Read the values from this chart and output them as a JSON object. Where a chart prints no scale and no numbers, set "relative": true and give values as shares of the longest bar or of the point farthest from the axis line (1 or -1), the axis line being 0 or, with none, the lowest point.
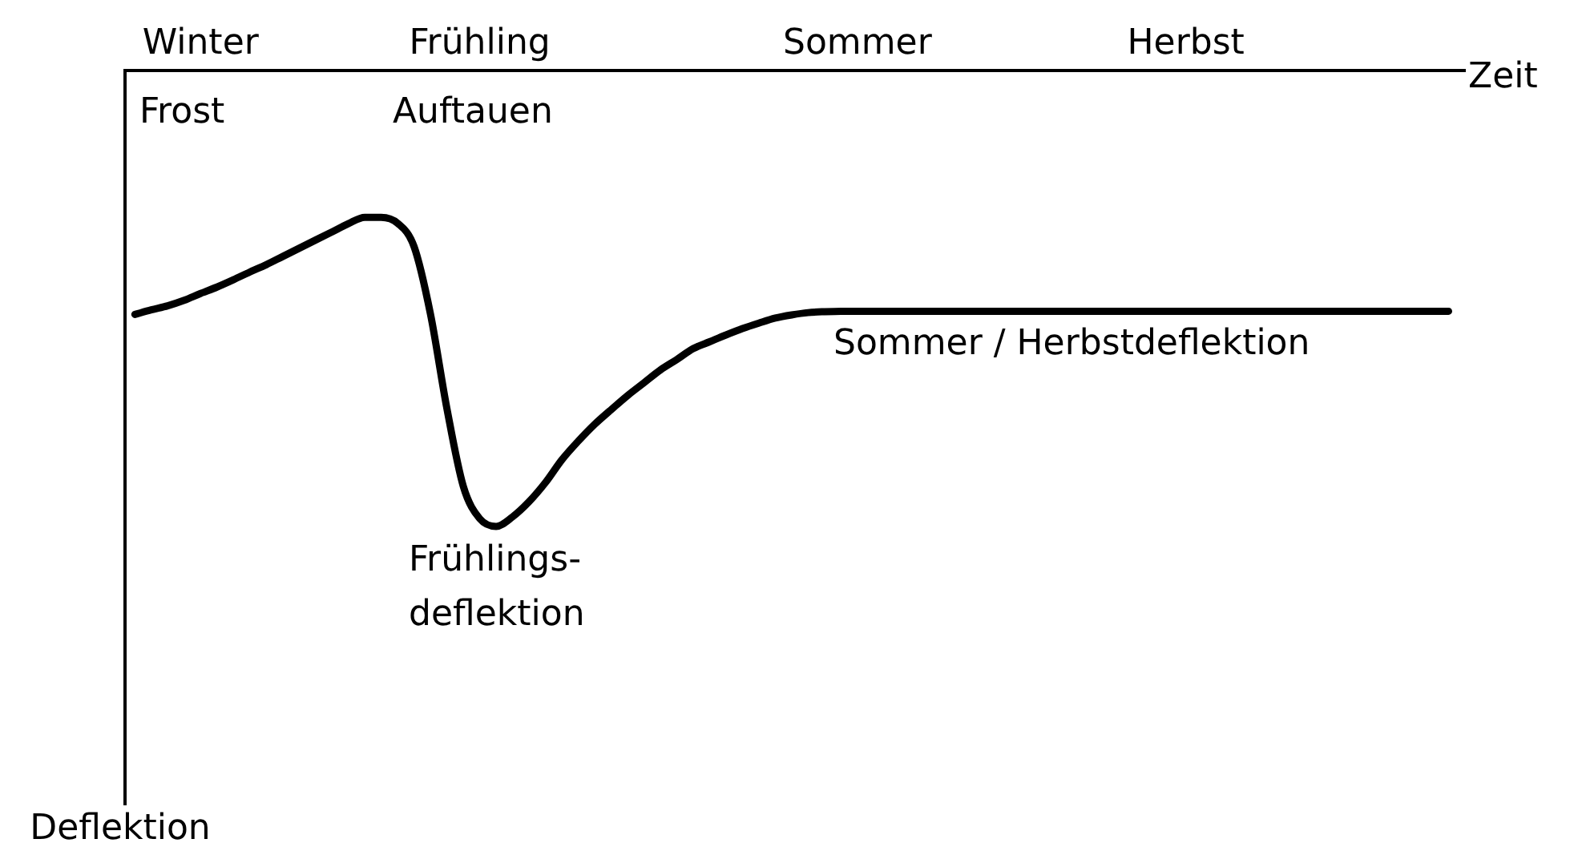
{
  "chart_data": {
    "type": "line",
    "relative": true,
    "color": "#000000",
    "marker": "none",
    "xlabel": "Zeit",
    "categories": [
      null,
      null,
      null,
      null,
      "Winter",
      null,
      null,
      null,
      null,
      null,
      null,
      null,
      null,
      null,
      null,
      null,
      null,
      null,
      null,
      null,
      null,
      "Frühling",
      null,
      null,
      null,
      null,
      null,
      null,
      null,
      null,
      null,
      null,
      null,
      null,
      null,
      null,
      null,
      null,
      null,
      null,
      null,
      null,
      null,
      null,
      "Sommer",
      null,
      null,
      null,
      null,
      null,
      null,
      null,
      null,
      null,
      null,
      null,
      null,
      null,
      null,
      null,
      null,
      null,
      null,
      null,
      "Herbst",
      null,
      null,
      null,
      null,
      null,
      null,
      null,
      null,
      null,
      null,
      null,
      null,
      null,
      null,
      null,
      null
    ],
    "values": [
      -0.535,
      -0.525,
      -0.516,
      -0.504,
      -0.489,
      -0.475,
      -0.459,
      -0.442,
      -0.426,
      -0.408,
      -0.39,
      -0.372,
      -0.354,
      -0.336,
      -0.322,
      -0.322,
      -0.335,
      -0.386,
      -0.534,
      -0.741,
      -0.912,
      -0.983,
      -1,
      -0.979,
      -0.946,
      -0.904,
      -0.854,
      -0.813,
      -0.776,
      -0.744,
      -0.713,
      -0.685,
      -0.657,
      -0.634,
      -0.61,
      -0.595,
      -0.58,
      -0.566,
      -0.554,
      -0.543,
      -0.536,
      -0.531,
      -0.529,
      -0.528,
      -0.528,
      -0.528,
      -0.528,
      -0.528,
      -0.528,
      -0.528,
      -0.528,
      -0.528,
      -0.528,
      -0.528,
      -0.528,
      -0.528,
      -0.528,
      -0.528,
      -0.528,
      -0.528,
      -0.528,
      -0.528,
      -0.528,
      -0.528,
      -0.528,
      -0.528,
      -0.528,
      -0.528,
      -0.528,
      -0.528,
      -0.528,
      -0.528,
      -0.528,
      -0.528,
      -0.528,
      -0.528,
      -0.528,
      -0.528,
      -0.528,
      -0.528,
      -0.528
    ],
    "annotations": [
      "Frost",
      "Auftauen",
      {
        "text": "Frühlings-\ndeflektion",
        "y": -1
      },
      {
        "text": "Sommer / Herbstdeflektion",
        "y": -0.528
      },
      "Deflektion"
    ]
  }
}
